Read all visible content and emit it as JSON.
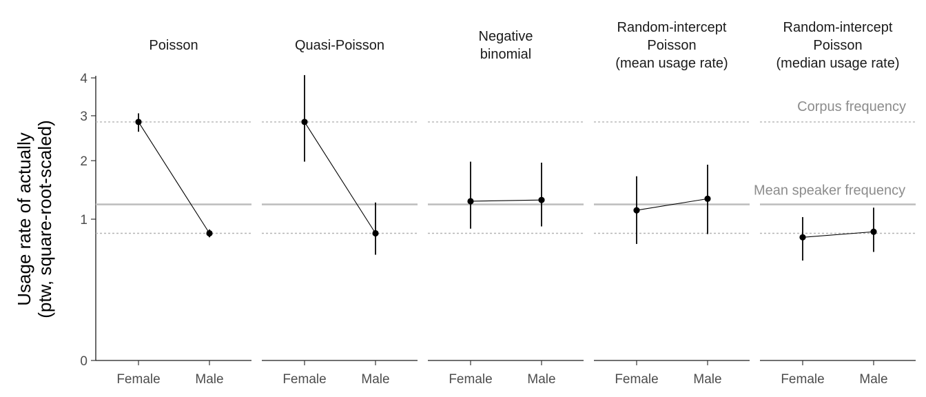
{
  "chart_data": {
    "type": "scatter",
    "subtype": "faceted point-range with connecting lines",
    "y_scale": "sqrt",
    "ylim": [
      0,
      4.4
    ],
    "yticks": [
      0,
      1,
      2,
      3,
      4
    ],
    "ylabel_lines": [
      "Usage rate of actually",
      "(ptw, square-root-scaled)"
    ],
    "categories": [
      "Female",
      "Male"
    ],
    "reference_lines": {
      "corpus_frequency": {
        "label": "Corpus frequency",
        "values": [
          2.85,
          0.81
        ],
        "style": "dotted",
        "color": "#b3b3b3"
      },
      "mean_speaker_frequency": {
        "label": "Mean speaker frequency",
        "value": 1.22,
        "style": "solid",
        "color": "#bfbfbf"
      }
    },
    "panels": [
      {
        "title_lines": [
          "Poisson"
        ],
        "points": [
          {
            "x": "Female",
            "y": 2.85,
            "lo": 2.62,
            "hi": 3.06
          },
          {
            "x": "Male",
            "y": 0.81,
            "lo": 0.76,
            "hi": 0.86
          }
        ],
        "show_corpus_label": false,
        "show_mean_label": false
      },
      {
        "title_lines": [
          "Quasi-Poisson"
        ],
        "points": [
          {
            "x": "Female",
            "y": 2.85,
            "lo": 1.98,
            "hi": 4.08
          },
          {
            "x": "Male",
            "y": 0.81,
            "lo": 0.56,
            "hi": 1.25
          }
        ],
        "show_corpus_label": false,
        "show_mean_label": false
      },
      {
        "title_lines": [
          "Negative",
          "binomial"
        ],
        "points": [
          {
            "x": "Female",
            "y": 1.27,
            "lo": 0.87,
            "hi": 1.98
          },
          {
            "x": "Male",
            "y": 1.29,
            "lo": 0.9,
            "hi": 1.96
          }
        ],
        "show_corpus_label": false,
        "show_mean_label": false
      },
      {
        "title_lines": [
          "Random-intercept",
          "Poisson",
          "(mean usage rate)"
        ],
        "points": [
          {
            "x": "Female",
            "y": 1.13,
            "lo": 0.68,
            "hi": 1.7
          },
          {
            "x": "Male",
            "y": 1.31,
            "lo": 0.8,
            "hi": 1.92
          }
        ],
        "show_corpus_label": false,
        "show_mean_label": true
      },
      {
        "title_lines": [
          "Random-intercept",
          "Poisson",
          "(median usage rate)"
        ],
        "points": [
          {
            "x": "Female",
            "y": 0.76,
            "lo": 0.5,
            "hi": 1.03
          },
          {
            "x": "Male",
            "y": 0.83,
            "lo": 0.59,
            "hi": 1.17
          }
        ],
        "show_corpus_label": true,
        "show_mean_label": false
      }
    ],
    "grid": false,
    "legend": "none"
  }
}
